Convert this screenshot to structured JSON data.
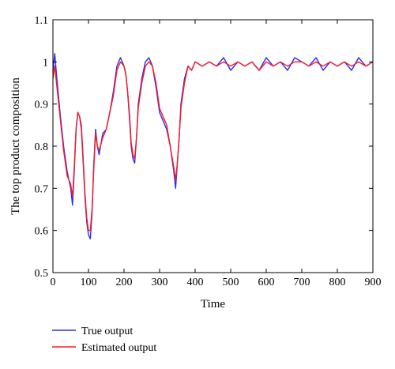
{
  "chart_data": {
    "type": "line",
    "title": "",
    "xlabel": "Time",
    "ylabel": "The top product composition",
    "xlim": [
      0,
      900
    ],
    "ylim": [
      0.5,
      1.1
    ],
    "x_ticks": [
      0,
      100,
      200,
      300,
      400,
      500,
      600,
      700,
      800,
      900
    ],
    "x_tick_labels": [
      "0",
      "100",
      "200",
      "300",
      "400",
      "500",
      "600",
      "700",
      "800",
      "900"
    ],
    "y_ticks": [
      0.5,
      0.6,
      0.7,
      0.8,
      0.9,
      1.0,
      1.1
    ],
    "y_tick_labels": [
      "0.5",
      "0.6",
      "0.7",
      "0.8",
      "0.9",
      "1",
      "1.1"
    ],
    "grid": false,
    "legend_position": "bottom-left, below plot",
    "series": [
      {
        "name": "True output",
        "color": "#2b2bff",
        "x": [
          0,
          5,
          10,
          20,
          30,
          40,
          50,
          55,
          60,
          65,
          70,
          75,
          80,
          85,
          90,
          95,
          100,
          105,
          110,
          115,
          120,
          125,
          130,
          140,
          150,
          160,
          170,
          180,
          190,
          200,
          205,
          210,
          215,
          220,
          225,
          230,
          235,
          240,
          250,
          260,
          270,
          280,
          290,
          300,
          310,
          320,
          330,
          340,
          345,
          350,
          355,
          360,
          370,
          380,
          390,
          400,
          420,
          440,
          460,
          480,
          500,
          520,
          540,
          560,
          580,
          600,
          620,
          640,
          660,
          680,
          700,
          720,
          740,
          760,
          780,
          800,
          820,
          840,
          860,
          880,
          900
        ],
        "y": [
          0.98,
          1.02,
          0.97,
          0.88,
          0.8,
          0.74,
          0.7,
          0.66,
          0.74,
          0.84,
          0.88,
          0.87,
          0.84,
          0.76,
          0.68,
          0.62,
          0.59,
          0.58,
          0.64,
          0.76,
          0.84,
          0.8,
          0.78,
          0.83,
          0.84,
          0.88,
          0.93,
          0.99,
          1.01,
          0.99,
          0.97,
          0.93,
          0.87,
          0.8,
          0.77,
          0.76,
          0.82,
          0.9,
          0.96,
          1.0,
          1.01,
          0.99,
          0.94,
          0.88,
          0.86,
          0.84,
          0.8,
          0.74,
          0.7,
          0.76,
          0.82,
          0.9,
          0.96,
          0.99,
          0.98,
          1.0,
          0.99,
          1.0,
          0.99,
          1.01,
          0.98,
          1.0,
          0.99,
          1.0,
          0.98,
          1.01,
          0.99,
          1.0,
          0.98,
          1.01,
          1.0,
          0.99,
          1.01,
          0.98,
          1.0,
          0.99,
          1.0,
          0.98,
          1.01,
          0.99,
          1.0
        ]
      },
      {
        "name": "Estimated output",
        "color": "#ff1a1a",
        "x": [
          0,
          5,
          10,
          20,
          30,
          40,
          50,
          55,
          60,
          65,
          70,
          75,
          80,
          85,
          90,
          95,
          100,
          105,
          110,
          115,
          120,
          125,
          130,
          140,
          150,
          160,
          170,
          180,
          190,
          200,
          205,
          210,
          215,
          220,
          225,
          230,
          235,
          240,
          250,
          260,
          270,
          280,
          290,
          300,
          310,
          320,
          330,
          340,
          345,
          350,
          355,
          360,
          370,
          380,
          390,
          400,
          420,
          440,
          460,
          480,
          500,
          520,
          540,
          560,
          580,
          600,
          620,
          640,
          660,
          680,
          700,
          720,
          740,
          760,
          780,
          800,
          820,
          840,
          860,
          880,
          900
        ],
        "y": [
          0.96,
          0.99,
          0.95,
          0.87,
          0.79,
          0.73,
          0.71,
          0.68,
          0.75,
          0.84,
          0.88,
          0.87,
          0.85,
          0.77,
          0.69,
          0.63,
          0.6,
          0.6,
          0.65,
          0.75,
          0.83,
          0.8,
          0.79,
          0.82,
          0.84,
          0.88,
          0.92,
          0.98,
          1.0,
          0.99,
          0.97,
          0.93,
          0.88,
          0.81,
          0.78,
          0.77,
          0.82,
          0.89,
          0.95,
          0.99,
          1.0,
          0.99,
          0.95,
          0.89,
          0.87,
          0.85,
          0.8,
          0.75,
          0.72,
          0.76,
          0.82,
          0.89,
          0.95,
          0.99,
          0.98,
          1.0,
          0.99,
          1.0,
          0.99,
          1.0,
          0.99,
          1.0,
          0.99,
          1.0,
          0.98,
          1.0,
          0.99,
          1.0,
          0.99,
          1.0,
          1.0,
          0.99,
          1.0,
          0.99,
          1.0,
          0.99,
          1.0,
          0.99,
          1.0,
          0.99,
          1.0
        ]
      }
    ]
  }
}
